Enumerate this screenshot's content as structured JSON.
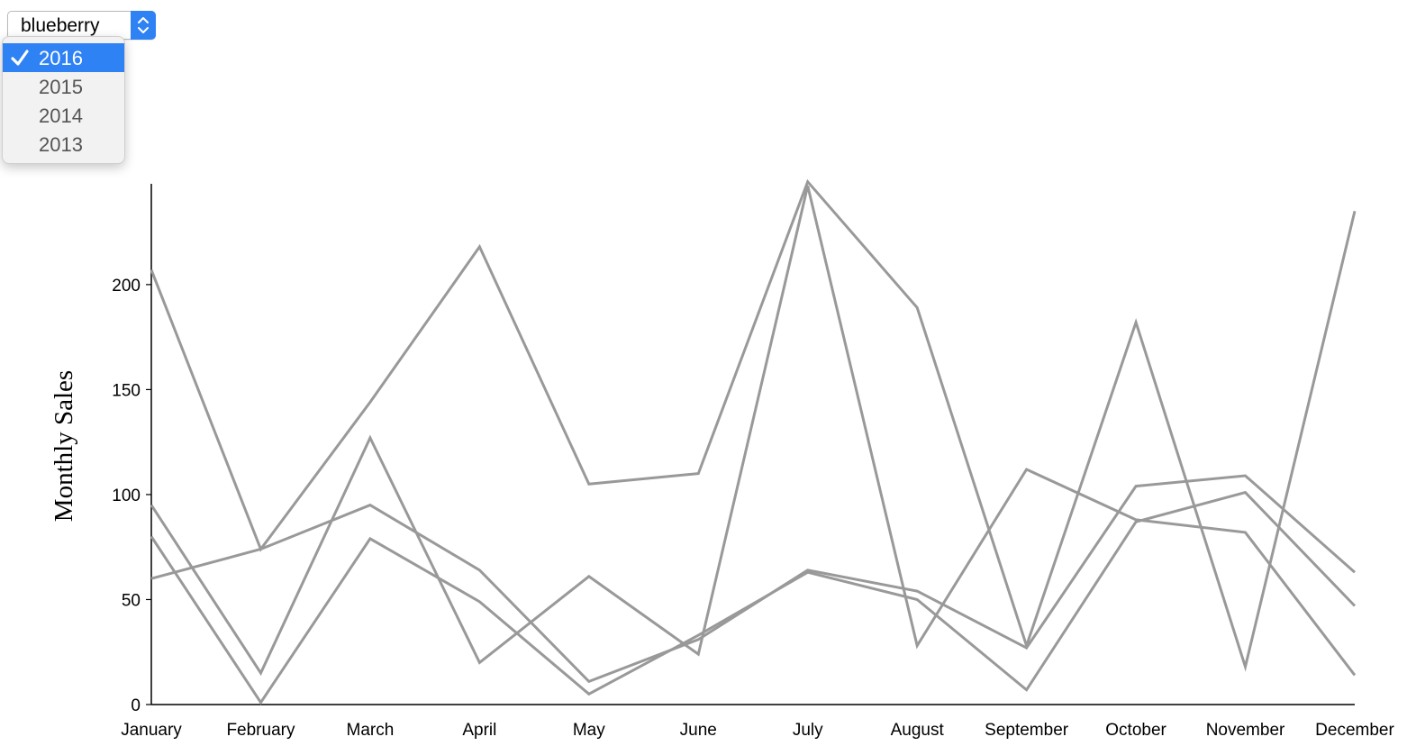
{
  "selector": {
    "value": "blueberry",
    "options_open": [
      {
        "label": "2016",
        "selected": true
      },
      {
        "label": "2015",
        "selected": false
      },
      {
        "label": "2014",
        "selected": false
      },
      {
        "label": "2013",
        "selected": false
      }
    ],
    "accent_color": "#2f82f4"
  },
  "chart_data": {
    "type": "line",
    "ylabel": "Monthly Sales",
    "xlabel": "",
    "categories": [
      "January",
      "February",
      "March",
      "April",
      "May",
      "June",
      "July",
      "August",
      "September",
      "October",
      "November",
      "December"
    ],
    "yticks": [
      0,
      50,
      100,
      150,
      200
    ],
    "ylim": [
      0,
      248
    ],
    "grid": false,
    "line_color": "#999999",
    "series": [
      {
        "values": [
          207,
          74,
          144,
          218,
          105,
          110,
          249,
          189,
          28,
          182,
          18,
          235
        ]
      },
      {
        "values": [
          95,
          15,
          127,
          20,
          61,
          24,
          247,
          28,
          112,
          88,
          82,
          14
        ]
      },
      {
        "values": [
          80,
          1,
          79,
          49,
          5,
          33,
          63,
          50,
          7,
          87,
          101,
          47
        ]
      },
      {
        "values": [
          60,
          74,
          95,
          64,
          11,
          31,
          64,
          54,
          27,
          104,
          109,
          63
        ]
      }
    ]
  }
}
